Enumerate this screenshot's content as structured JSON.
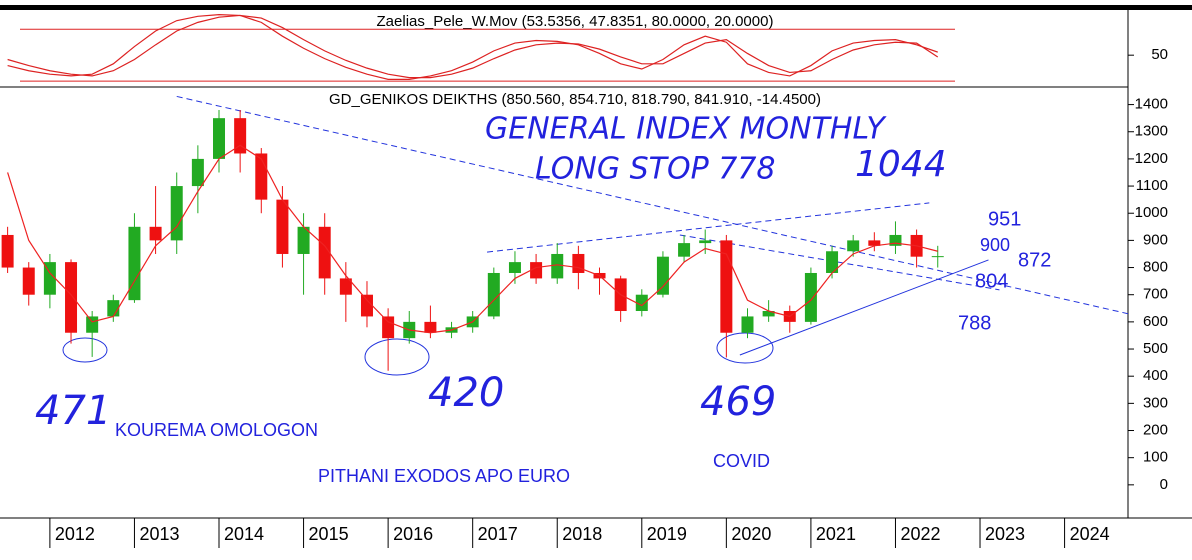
{
  "chart_data": [
    {
      "type": "oscillator",
      "title": "Zaelias_Pele_W.Mov (53.5356, 47.8351, 80.0000, 20.0000)",
      "x": [
        2011.5,
        2011.75,
        2012,
        2012.25,
        2012.5,
        2012.75,
        2013,
        2013.25,
        2013.5,
        2013.75,
        2014,
        2014.25,
        2014.5,
        2014.75,
        2015,
        2015.25,
        2015.5,
        2015.75,
        2016,
        2016.25,
        2016.5,
        2016.75,
        2017,
        2017.25,
        2017.5,
        2017.75,
        2018,
        2018.25,
        2018.5,
        2018.75,
        2019,
        2019.25,
        2019.5,
        2019.75,
        2020,
        2020.25,
        2020.5,
        2020.75,
        2021,
        2021.25,
        2021.5,
        2021.75,
        2022,
        2022.25,
        2022.5
      ],
      "series": [
        {
          "color": "#dd2222",
          "values": [
            38,
            32,
            28,
            26,
            28,
            40,
            60,
            78,
            90,
            95,
            97,
            96,
            88,
            72,
            58,
            46,
            36,
            28,
            22,
            22,
            26,
            32,
            42,
            55,
            64,
            67,
            66,
            62,
            52,
            40,
            34,
            45,
            62,
            72,
            65,
            40,
            30,
            26,
            38,
            55,
            64,
            67,
            68,
            62,
            53.5356
          ]
        },
        {
          "color": "#dd2222",
          "values": [
            45,
            38,
            32,
            28,
            26,
            32,
            45,
            62,
            78,
            88,
            94,
            96,
            93,
            82,
            68,
            55,
            44,
            35,
            28,
            24,
            24,
            28,
            35,
            46,
            56,
            62,
            64,
            63,
            57,
            48,
            40,
            40,
            52,
            64,
            68,
            52,
            38,
            30,
            32,
            45,
            56,
            62,
            65,
            64,
            47.8351
          ]
        }
      ],
      "levels": [
        80,
        20
      ],
      "level_color": "#dd2222",
      "ylim": [
        12,
        100
      ],
      "yticks": [
        50
      ]
    },
    {
      "type": "candlestick",
      "title": "GD_GENIKOS DEIKTHS (850.560, 854.710, 818.790, 841.910, -14.4500)",
      "x": [
        2011.5,
        2011.75,
        2012,
        2012.25,
        2012.5,
        2012.75,
        2013,
        2013.25,
        2013.5,
        2013.75,
        2014,
        2014.25,
        2014.5,
        2014.75,
        2015,
        2015.25,
        2015.5,
        2015.75,
        2016,
        2016.25,
        2016.5,
        2016.75,
        2017,
        2017.25,
        2017.5,
        2017.75,
        2018,
        2018.25,
        2018.5,
        2018.75,
        2019,
        2019.25,
        2019.5,
        2019.75,
        2020,
        2020.25,
        2020.5,
        2020.75,
        2021,
        2021.25,
        2021.5,
        2021.75,
        2022,
        2022.25,
        2022.5
      ],
      "open": [
        920,
        800,
        700,
        820,
        560,
        620,
        680,
        950,
        900,
        1100,
        1200,
        1350,
        1220,
        1050,
        850,
        950,
        760,
        700,
        620,
        540,
        600,
        560,
        580,
        620,
        780,
        820,
        760,
        850,
        780,
        760,
        640,
        700,
        840,
        890,
        900,
        560,
        620,
        640,
        600,
        780,
        860,
        900,
        880,
        920,
        840
      ],
      "high": [
        950,
        820,
        850,
        830,
        640,
        700,
        1000,
        1100,
        1150,
        1250,
        1380,
        1380,
        1240,
        1100,
        1000,
        1000,
        820,
        750,
        650,
        640,
        660,
        600,
        640,
        800,
        860,
        850,
        890,
        880,
        800,
        770,
        720,
        860,
        920,
        940,
        920,
        650,
        680,
        660,
        800,
        880,
        920,
        930,
        970,
        940,
        880
      ],
      "low": [
        780,
        660,
        650,
        520,
        471,
        600,
        670,
        850,
        850,
        1000,
        1150,
        1150,
        1000,
        800,
        700,
        700,
        600,
        580,
        420,
        520,
        540,
        540,
        560,
        610,
        740,
        740,
        740,
        720,
        700,
        600,
        620,
        690,
        820,
        850,
        469,
        540,
        600,
        560,
        590,
        760,
        840,
        860,
        850,
        800,
        800
      ],
      "close": [
        800,
        700,
        820,
        560,
        620,
        680,
        950,
        900,
        1100,
        1200,
        1350,
        1220,
        1050,
        850,
        950,
        760,
        700,
        620,
        540,
        600,
        560,
        580,
        620,
        780,
        820,
        760,
        850,
        780,
        760,
        640,
        700,
        840,
        890,
        900,
        560,
        620,
        640,
        600,
        780,
        860,
        900,
        880,
        920,
        840,
        842
      ],
      "color_up": "#22aa22",
      "color_down": "#ee1111",
      "ma": {
        "color": "#ee2222",
        "values": [
          1150,
          900,
          780,
          700,
          600,
          620,
          750,
          880,
          950,
          1080,
          1200,
          1250,
          1200,
          1050,
          950,
          880,
          770,
          680,
          600,
          570,
          560,
          570,
          600,
          680,
          760,
          800,
          810,
          800,
          770,
          700,
          660,
          730,
          820,
          870,
          850,
          680,
          640,
          620,
          680,
          780,
          850,
          880,
          890,
          880,
          860
        ]
      },
      "trendlines": [
        {
          "x": [
            2013.5,
            2024.75
          ],
          "y": [
            1430,
            630
          ],
          "dashed": true,
          "color": "#2233dd"
        },
        {
          "x": [
            2017.17,
            2022.4
          ],
          "y": [
            857,
            1038
          ],
          "dashed": true,
          "color": "#2233dd"
        },
        {
          "x": [
            2019.45,
            2023.23
          ],
          "y": [
            920,
            718
          ],
          "dashed": true,
          "color": "#2233dd"
        },
        {
          "x": [
            2020.16,
            2023.1
          ],
          "y": [
            478,
            828
          ],
          "dashed": false,
          "color": "#2233dd"
        }
      ],
      "annotations": [
        "GENERAL INDEX MONTHLY",
        "LONG STOP 778",
        "1044",
        "951",
        "900",
        "872",
        "804",
        "788",
        "471",
        "420",
        "469",
        "KOUREMA OMOLOGON",
        "PITHANI EXODOS APO EURO",
        "COVID"
      ],
      "xlim": [
        2011.41,
        2024.75
      ],
      "xticks": [
        2012,
        2013,
        2014,
        2015,
        2016,
        2017,
        2018,
        2019,
        2020,
        2021,
        2022,
        2023,
        2024
      ],
      "ylim": [
        -100,
        1450
      ],
      "yticks": [
        0,
        100,
        200,
        300,
        400,
        500,
        600,
        700,
        800,
        900,
        1000,
        1100,
        1200,
        1300,
        1400
      ]
    }
  ]
}
